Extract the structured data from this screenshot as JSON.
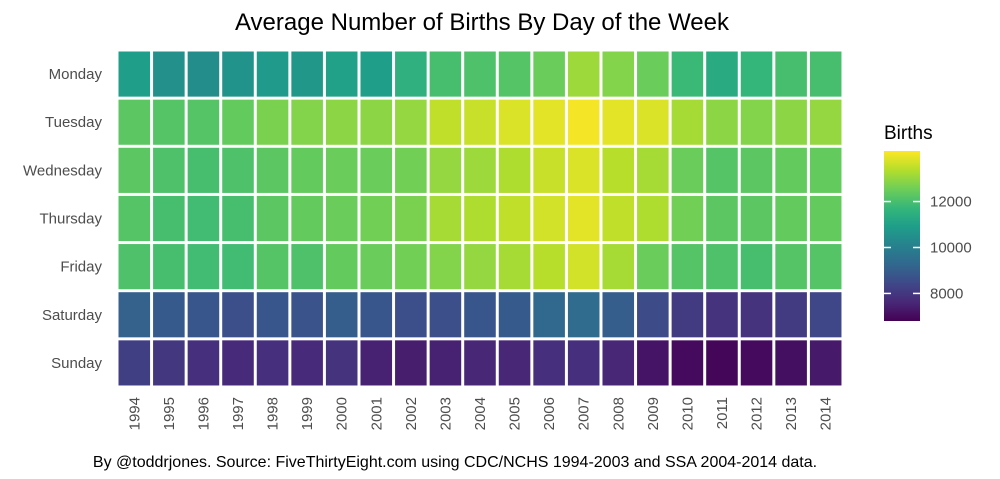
{
  "chart_data": {
    "type": "heatmap",
    "title": "Average Number of Births By Day of the Week",
    "caption": "By @toddrjones. Source: FiveThirtyEight.com using CDC/NCHS 1994-2003 and SSA 2004-2014 data.",
    "rows": [
      "Monday",
      "Tuesday",
      "Wednesday",
      "Thursday",
      "Friday",
      "Saturday",
      "Sunday"
    ],
    "columns": [
      "1994",
      "1995",
      "1996",
      "1997",
      "1998",
      "1999",
      "2000",
      "2001",
      "2002",
      "2003",
      "2004",
      "2005",
      "2006",
      "2007",
      "2008",
      "2009",
      "2010",
      "2011",
      "2012",
      "2013",
      "2014"
    ],
    "values": [
      [
        10900,
        10500,
        10400,
        10600,
        10800,
        10700,
        11000,
        10900,
        11500,
        12000,
        12100,
        12200,
        12500,
        13100,
        12800,
        12500,
        11800,
        11300,
        11700,
        12000,
        12000
      ],
      [
        12300,
        12200,
        12200,
        12400,
        12700,
        12800,
        12900,
        12900,
        13000,
        13500,
        13600,
        13800,
        13900,
        14100,
        13900,
        13800,
        13200,
        12900,
        12800,
        12900,
        13000
      ],
      [
        12300,
        12100,
        12000,
        12100,
        12300,
        12400,
        12500,
        12500,
        12600,
        13000,
        13100,
        13300,
        13600,
        13800,
        13400,
        13200,
        12500,
        12200,
        12300,
        12400,
        12400
      ],
      [
        12200,
        12000,
        11900,
        12000,
        12300,
        12400,
        12500,
        12600,
        12700,
        13200,
        13300,
        13500,
        13700,
        13900,
        13500,
        13300,
        12600,
        12300,
        12300,
        12400,
        12400
      ],
      [
        12100,
        12000,
        11900,
        11900,
        12200,
        12100,
        12400,
        12500,
        12600,
        12800,
        13000,
        13200,
        13400,
        13700,
        13200,
        12500,
        12200,
        12100,
        12000,
        12200,
        12200
      ],
      [
        9100,
        8900,
        8800,
        8600,
        8800,
        8700,
        9000,
        8800,
        8600,
        8600,
        8800,
        8900,
        9300,
        9400,
        9000,
        8500,
        8100,
        7900,
        7900,
        8100,
        8400
      ],
      [
        8200,
        8000,
        7800,
        7700,
        7800,
        7700,
        7900,
        7500,
        7400,
        7500,
        7600,
        7600,
        7800,
        7800,
        7600,
        7200,
        7000,
        6900,
        7000,
        7100,
        7300
      ]
    ],
    "legend": {
      "title": "Births",
      "ticks": [
        8000,
        10000,
        12000
      ],
      "min": 6800,
      "max": 14200,
      "placement": "right"
    },
    "colormap": "viridis",
    "colormap_stops": [
      "#440154",
      "#482878",
      "#3e4989",
      "#31688e",
      "#26828e",
      "#1f9e89",
      "#35b779",
      "#6ece58",
      "#b5de2b",
      "#fde725"
    ]
  }
}
